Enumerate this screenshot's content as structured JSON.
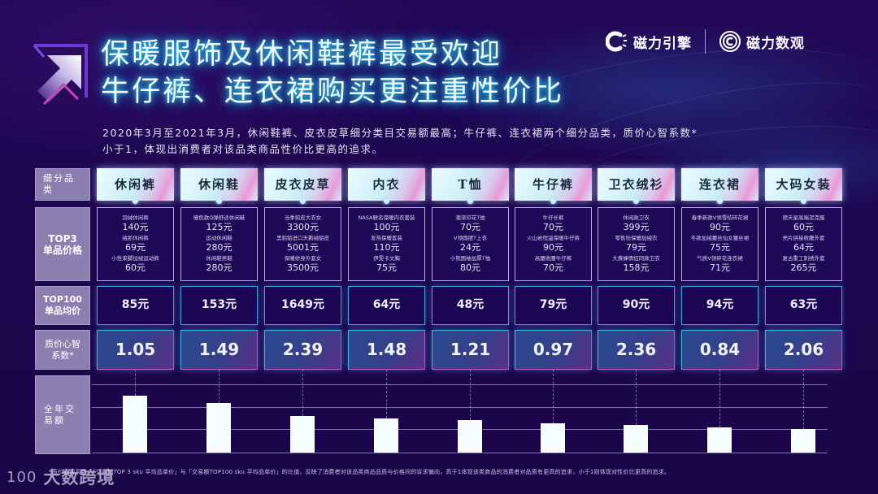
{
  "header": {
    "title_line1": "保暖服饰及休闲鞋裤最受欢迎",
    "title_line2": "牛仔裤、连衣裙购买更注重性价比",
    "subtitle_line1": "2020年3月至2021年3月，休闲鞋裤、皮衣皮草细分类目交易额最高；牛仔裤、连衣裙两个细分品类，质价心智系数*",
    "subtitle_line2": "小于1，体现出消费者对该品类商品性价比更高的追求。"
  },
  "brands": {
    "brand1": "磁力引擎",
    "brand2": "磁力数观"
  },
  "row_labels": {
    "category": "细分品类",
    "top3": [
      "TOP3",
      "单品价格"
    ],
    "top100": [
      "TOP100",
      "单品均价"
    ],
    "ratio": [
      "质价心智",
      "系数*"
    ],
    "annual": "全年交易额"
  },
  "categories": [
    {
      "name": "休闲裤",
      "top3": [
        {
          "item": "羽绒休闲裤",
          "price": "140元"
        },
        {
          "item": "绒抓休闲裤",
          "price": "69元"
        },
        {
          "item": "小性束脚加绒运动裤",
          "price": "60元"
        }
      ],
      "top100_avg": "85元",
      "ratio": "1.05"
    },
    {
      "name": "休闲鞋",
      "top3": [
        {
          "item": "撞色款Q弹舒适休闲鞋",
          "price": "125元"
        },
        {
          "item": "运动休闲鞋",
          "price": "280元"
        },
        {
          "item": "休闲鞋男鞋",
          "price": "280元"
        }
      ],
      "top100_avg": "153元",
      "ratio": "1.49"
    },
    {
      "name": "皮衣皮草",
      "top3": [
        {
          "item": "当季貂皮大衣女",
          "price": "3300元"
        },
        {
          "item": "黑貂貂进口天鹅绒貂皮",
          "price": "5001元"
        },
        {
          "item": "保暖修身外套女",
          "price": "3500元"
        }
      ],
      "top100_avg": "1649元",
      "ratio": "2.39"
    },
    {
      "name": "内衣",
      "top3": [
        {
          "item": "NASA联名保暖内衣套装",
          "price": "100元"
        },
        {
          "item": "发热保暖套装",
          "price": "110元"
        },
        {
          "item": "伊雯卡文胸",
          "price": "75元"
        }
      ],
      "top100_avg": "64元",
      "ratio": "1.48"
    },
    {
      "name": "T恤",
      "top3": [
        {
          "item": "潮流印花T恤",
          "price": "70元"
        },
        {
          "item": "V领圆摆T上衣",
          "price": "24元"
        },
        {
          "item": "小熊图袖加厚T恤",
          "price": "80元"
        }
      ],
      "top100_avg": "48元",
      "ratio": "1.21"
    },
    {
      "name": "牛仔裤",
      "top3": [
        {
          "item": "牛仔长裤",
          "price": "70元"
        },
        {
          "item": "火山岩恒温保暖牛仔裤",
          "price": "90元"
        },
        {
          "item": "高腰收腰牛仔裤",
          "price": "70元"
        }
      ],
      "top100_avg": "79元",
      "ratio": "0.97"
    },
    {
      "name": "卫衣绒衫",
      "top3": [
        {
          "item": "休闲款卫衣",
          "price": "399元"
        },
        {
          "item": "零售怡保暖加绒衣",
          "price": "79元"
        },
        {
          "item": "大黄蜂情侣同款卫衣",
          "price": "158元"
        }
      ],
      "top100_avg": "90元",
      "ratio": "2.36"
    },
    {
      "name": "连衣裙",
      "top3": [
        {
          "item": "春季新款V领雪纺碎花裙",
          "price": "90元"
        },
        {
          "item": "冬款加绒蕾丝仙女蕾丝裙",
          "price": "75元"
        },
        {
          "item": "气质V领碎花连衣裙",
          "price": "71元"
        }
      ],
      "top100_avg": "94元",
      "ratio": "0.84"
    },
    {
      "name": "大码女装",
      "top3": [
        {
          "item": "德天星高端泥克服",
          "price": "60元"
        },
        {
          "item": "亮片拼接收腰外套",
          "price": "64元"
        },
        {
          "item": "复古重工刺绣外套",
          "price": "265元"
        }
      ],
      "top100_avg": "63元",
      "ratio": "2.06"
    }
  ],
  "chart_data": {
    "type": "bar",
    "title": "全年交易额",
    "categories": [
      "休闲裤",
      "休闲鞋",
      "皮衣皮草",
      "内衣",
      "T恤",
      "牛仔裤",
      "卫衣绒衫",
      "连衣裙",
      "大码女装"
    ],
    "values": [
      69,
      60,
      44,
      42,
      40,
      36,
      34,
      31,
      29
    ],
    "ylabel": "全年交易额 (relative, no axis values shown)",
    "xlabel": "",
    "ylim": [
      0,
      85
    ],
    "grid": true,
    "legend": "none"
  },
  "footnote": "*质价心智系数：「交易额TOP 3 sku 平均品单价」与「交易额TOP100 sku 平均品单价」的比值，反映了消费者对该品类商品品质与价格间的诉求偏向，高于1体现该类商品的消费者对品质有更高的追求，小于1则体现对性价比更高的追求。",
  "watermark": {
    "logo": "100",
    "text": "大数跨境"
  },
  "colors": {
    "background": "#1d0650",
    "title_glow": "#35c8e8",
    "label_box": "#8b7fb0",
    "bar": "#f6fdff"
  }
}
